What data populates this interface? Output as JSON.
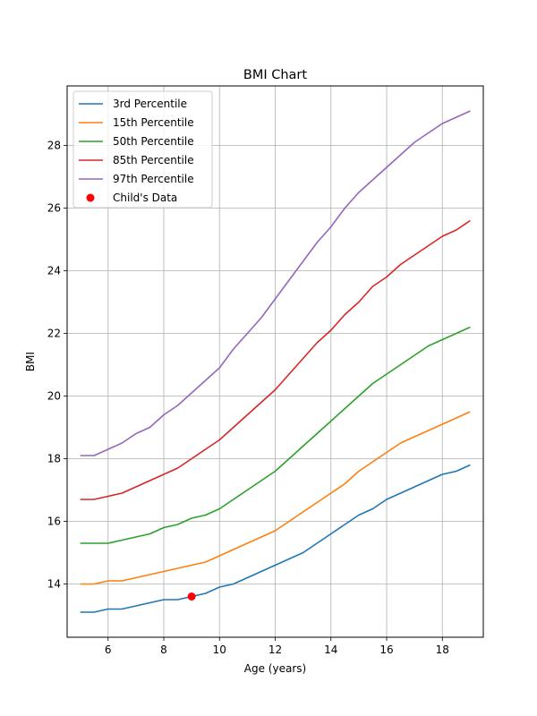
{
  "chart_data": {
    "type": "line",
    "title": "BMI Chart",
    "xlabel": "Age (years)",
    "ylabel": "BMI",
    "xlim": [
      4.53,
      19.47
    ],
    "ylim": [
      12.3,
      29.9
    ],
    "xticks": [
      6,
      8,
      10,
      12,
      14,
      16,
      18
    ],
    "yticks": [
      14,
      16,
      18,
      20,
      22,
      24,
      26,
      28
    ],
    "grid": true,
    "legend_position": "top-left",
    "series": [
      {
        "name": "3rd Percentile",
        "color": "#1f77b4",
        "x": [
          5,
          5.5,
          6,
          6.5,
          7,
          7.5,
          8,
          8.5,
          9,
          9.5,
          10,
          10.5,
          11,
          11.5,
          12,
          12.5,
          13,
          13.5,
          14,
          14.5,
          15,
          15.5,
          16,
          16.5,
          17,
          17.5,
          18,
          18.5,
          19
        ],
        "y": [
          13.1,
          13.1,
          13.2,
          13.2,
          13.3,
          13.4,
          13.5,
          13.5,
          13.6,
          13.7,
          13.9,
          14.0,
          14.2,
          14.4,
          14.6,
          14.8,
          15.0,
          15.3,
          15.6,
          15.9,
          16.2,
          16.4,
          16.7,
          16.9,
          17.1,
          17.3,
          17.5,
          17.6,
          17.8
        ]
      },
      {
        "name": "15th Percentile",
        "color": "#ff7f0e",
        "x": [
          5,
          5.5,
          6,
          6.5,
          7,
          7.5,
          8,
          8.5,
          9,
          9.5,
          10,
          10.5,
          11,
          11.5,
          12,
          12.5,
          13,
          13.5,
          14,
          14.5,
          15,
          15.5,
          16,
          16.5,
          17,
          17.5,
          18,
          18.5,
          19
        ],
        "y": [
          14.0,
          14.0,
          14.1,
          14.1,
          14.2,
          14.3,
          14.4,
          14.5,
          14.6,
          14.7,
          14.9,
          15.1,
          15.3,
          15.5,
          15.7,
          16.0,
          16.3,
          16.6,
          16.9,
          17.2,
          17.6,
          17.9,
          18.2,
          18.5,
          18.7,
          18.9,
          19.1,
          19.3,
          19.5
        ]
      },
      {
        "name": "50th Percentile",
        "color": "#2ca02c",
        "x": [
          5,
          5.5,
          6,
          6.5,
          7,
          7.5,
          8,
          8.5,
          9,
          9.5,
          10,
          10.5,
          11,
          11.5,
          12,
          12.5,
          13,
          13.5,
          14,
          14.5,
          15,
          15.5,
          16,
          16.5,
          17,
          17.5,
          18,
          18.5,
          19
        ],
        "y": [
          15.3,
          15.3,
          15.3,
          15.4,
          15.5,
          15.6,
          15.8,
          15.9,
          16.1,
          16.2,
          16.4,
          16.7,
          17.0,
          17.3,
          17.6,
          18.0,
          18.4,
          18.8,
          19.2,
          19.6,
          20.0,
          20.4,
          20.7,
          21.0,
          21.3,
          21.6,
          21.8,
          22.0,
          22.2
        ]
      },
      {
        "name": "85th Percentile",
        "color": "#d62728",
        "x": [
          5,
          5.5,
          6,
          6.5,
          7,
          7.5,
          8,
          8.5,
          9,
          9.5,
          10,
          10.5,
          11,
          11.5,
          12,
          12.5,
          13,
          13.5,
          14,
          14.5,
          15,
          15.5,
          16,
          16.5,
          17,
          17.5,
          18,
          18.5,
          19
        ],
        "y": [
          16.7,
          16.7,
          16.8,
          16.9,
          17.1,
          17.3,
          17.5,
          17.7,
          18.0,
          18.3,
          18.6,
          19.0,
          19.4,
          19.8,
          20.2,
          20.7,
          21.2,
          21.7,
          22.1,
          22.6,
          23.0,
          23.5,
          23.8,
          24.2,
          24.5,
          24.8,
          25.1,
          25.3,
          25.6
        ]
      },
      {
        "name": "97th Percentile",
        "color": "#9467bd",
        "x": [
          5,
          5.5,
          6,
          6.5,
          7,
          7.5,
          8,
          8.5,
          9,
          9.5,
          10,
          10.5,
          11,
          11.5,
          12,
          12.5,
          13,
          13.5,
          14,
          14.5,
          15,
          15.5,
          16,
          16.5,
          17,
          17.5,
          18,
          18.5,
          19
        ],
        "y": [
          18.1,
          18.1,
          18.3,
          18.5,
          18.8,
          19.0,
          19.4,
          19.7,
          20.1,
          20.5,
          20.9,
          21.5,
          22.0,
          22.5,
          23.1,
          23.7,
          24.3,
          24.9,
          25.4,
          26.0,
          26.5,
          26.9,
          27.3,
          27.7,
          28.1,
          28.4,
          28.7,
          28.9,
          29.1
        ]
      }
    ],
    "points": [
      {
        "name": "Child's Data",
        "color": "#ff0000",
        "x": 9,
        "y": 13.6
      }
    ]
  }
}
